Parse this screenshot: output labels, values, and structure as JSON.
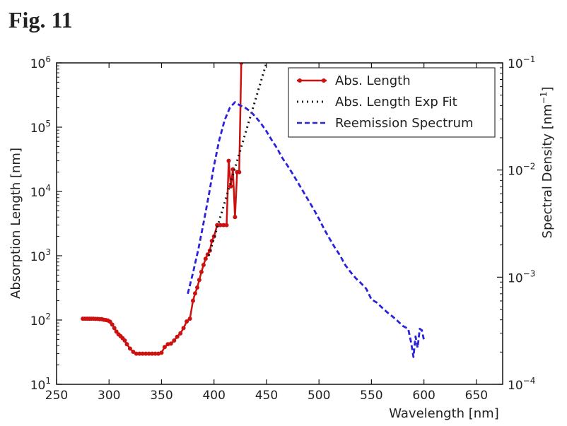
{
  "figure_label": "Fig. 11",
  "chart_data": {
    "type": "line",
    "x_axis": {
      "label": "Wavelength [nm]",
      "min": 250,
      "max": 675,
      "ticks": [
        250,
        300,
        350,
        400,
        450,
        500,
        550,
        600,
        650
      ]
    },
    "y_left": {
      "label": "Absorption Length [nm]",
      "scale": "log",
      "min": 10,
      "max": 1000000,
      "tick_base": [
        "10",
        "10",
        "10",
        "10",
        "10",
        "10"
      ],
      "tick_exp": [
        "1",
        "2",
        "3",
        "4",
        "5",
        "6"
      ],
      "tick_values": [
        10,
        100,
        1000,
        10000,
        100000,
        1000000
      ]
    },
    "y_right": {
      "label_main": "Spectral Density [nm",
      "label_sup": "−1",
      "label_end": "]",
      "scale": "log",
      "min": 0.0001,
      "max": 0.1,
      "tick_base": [
        "10",
        "10",
        "10",
        "10"
      ],
      "tick_exp": [
        "−4",
        "−3",
        "−2",
        "−1"
      ],
      "tick_values": [
        0.0001,
        0.001,
        0.01,
        0.1
      ]
    },
    "legend": {
      "placement": "top-right",
      "entries": [
        "Abs. Length",
        "Abs. Length Exp Fit",
        "Reemission Spectrum"
      ]
    },
    "series": [
      {
        "name": "Abs. Length",
        "axis": "left",
        "color": "#cc1111",
        "style": "solid-markers",
        "x": [
          275,
          277,
          279,
          281,
          283,
          285,
          287,
          289,
          291,
          293,
          295,
          297,
          299,
          301,
          303,
          305,
          307,
          309,
          311,
          313,
          315,
          317,
          320,
          323,
          326,
          329,
          332,
          335,
          338,
          341,
          344,
          347,
          350,
          353,
          356,
          359,
          362,
          365,
          368,
          371,
          374,
          377,
          380,
          382,
          384,
          386,
          388,
          390,
          392,
          394,
          396,
          398,
          400,
          403,
          406,
          409,
          412,
          414,
          416,
          418,
          420,
          422,
          424,
          426
        ],
        "y": [
          105,
          105,
          105,
          105,
          105,
          105,
          104,
          104,
          103,
          103,
          101,
          100,
          98,
          94,
          85,
          75,
          66,
          60,
          56,
          52,
          48,
          42,
          36,
          32,
          30,
          30,
          30,
          30,
          30,
          30,
          30,
          30,
          31,
          38,
          42,
          43,
          48,
          55,
          62,
          75,
          95,
          105,
          200,
          260,
          320,
          420,
          560,
          720,
          900,
          1050,
          1200,
          1700,
          2000,
          3000,
          3000,
          3000,
          3000,
          30000,
          12000,
          22000,
          4000,
          20000,
          20000,
          1000000
        ]
      },
      {
        "name": "Abs. Length Exp Fit",
        "axis": "left",
        "color": "#111111",
        "style": "dotted",
        "x": [
          395,
          450
        ],
        "y": [
          1000,
          1000000
        ]
      },
      {
        "name": "Reemission Spectrum",
        "axis": "right",
        "color": "#2a22dd",
        "style": "dashed",
        "x": [
          375,
          380,
          385,
          390,
          395,
          400,
          405,
          410,
          415,
          420,
          425,
          430,
          435,
          440,
          445,
          450,
          455,
          460,
          465,
          470,
          475,
          480,
          485,
          490,
          495,
          500,
          505,
          510,
          515,
          520,
          525,
          530,
          535,
          540,
          545,
          550,
          555,
          560,
          565,
          570,
          575,
          580,
          585,
          588,
          590,
          592,
          594,
          596,
          598,
          600
        ],
        "y": [
          0.0007,
          0.0011,
          0.0018,
          0.0032,
          0.0058,
          0.011,
          0.019,
          0.029,
          0.038,
          0.043,
          0.04,
          0.038,
          0.035,
          0.031,
          0.027,
          0.023,
          0.019,
          0.016,
          0.013,
          0.011,
          0.0092,
          0.0076,
          0.0063,
          0.0052,
          0.0043,
          0.0035,
          0.0028,
          0.0023,
          0.0019,
          0.0016,
          0.0013,
          0.00112,
          0.00098,
          0.00088,
          0.00078,
          0.00062,
          0.00058,
          0.00052,
          0.00047,
          0.00043,
          0.00039,
          0.00035,
          0.00033,
          0.00024,
          0.00018,
          0.00028,
          0.00022,
          0.00033,
          0.00032,
          0.00026
        ]
      }
    ]
  }
}
